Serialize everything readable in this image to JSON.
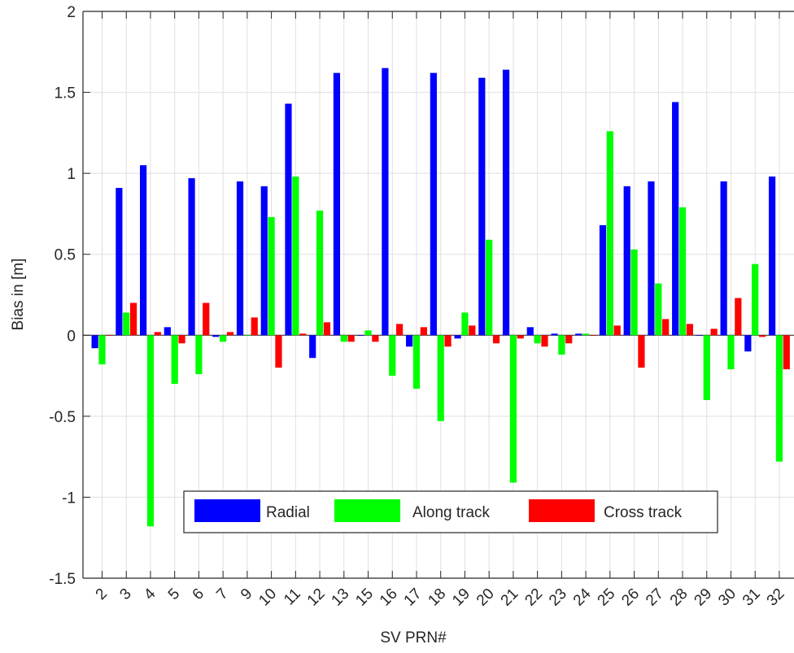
{
  "chart_data": {
    "type": "bar",
    "title": "",
    "xlabel": "SV PRN#",
    "ylabel": "Bias in [m]",
    "ylim": [
      -1.5,
      2
    ],
    "yticks": [
      -1.5,
      -1,
      -0.5,
      0,
      0.5,
      1,
      1.5,
      2
    ],
    "ytick_labels": [
      "-1.5",
      "-1",
      "-0.5",
      "0",
      "0.5",
      "1",
      "1.5",
      "2"
    ],
    "grid": true,
    "legend_position": "bottom-center",
    "legend_orientation": "horizontal",
    "categories": [
      "2",
      "3",
      "4",
      "5",
      "6",
      "7",
      "9",
      "10",
      "11",
      "12",
      "13",
      "15",
      "16",
      "17",
      "18",
      "19",
      "20",
      "21",
      "22",
      "23",
      "24",
      "25",
      "26",
      "27",
      "28",
      "29",
      "30",
      "31",
      "32"
    ],
    "series": [
      {
        "name": "Radial",
        "color": "#0000ff",
        "values": [
          -0.08,
          0.91,
          1.05,
          0.05,
          0.97,
          -0.01,
          0.95,
          0.92,
          1.43,
          -0.14,
          1.62,
          0.0,
          1.65,
          -0.07,
          1.62,
          -0.02,
          1.59,
          1.64,
          0.05,
          0.01,
          0.01,
          0.68,
          0.92,
          0.95,
          1.44,
          0.0,
          0.95,
          -0.1,
          0.98
        ]
      },
      {
        "name": "Along track",
        "color": "#00ff00",
        "values": [
          -0.18,
          0.14,
          -1.18,
          -0.3,
          -0.24,
          -0.04,
          0.0,
          0.73,
          0.98,
          0.77,
          -0.04,
          0.03,
          -0.25,
          -0.33,
          -0.53,
          0.14,
          0.59,
          -0.91,
          -0.05,
          -0.12,
          0.01,
          1.26,
          0.53,
          0.32,
          0.79,
          -0.4,
          -0.21,
          0.44,
          -0.78
        ]
      },
      {
        "name": "Cross track",
        "color": "#ff0000",
        "values": [
          0.0,
          0.2,
          0.02,
          -0.05,
          0.2,
          0.02,
          0.11,
          -0.2,
          0.01,
          0.08,
          -0.04,
          -0.04,
          0.07,
          0.05,
          -0.07,
          0.06,
          -0.05,
          -0.02,
          -0.07,
          -0.05,
          0.0,
          0.06,
          -0.2,
          0.1,
          0.07,
          0.04,
          0.23,
          -0.01,
          -0.21
        ]
      }
    ]
  }
}
